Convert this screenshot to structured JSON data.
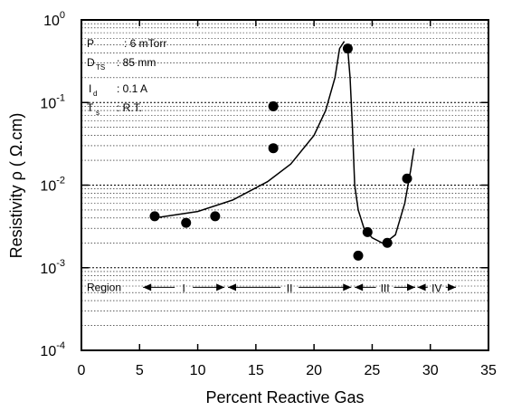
{
  "chart_data": {
    "type": "scatter",
    "xlabel": "Percent Reactive Gas",
    "ylabel": "Resistivity ρ ( Ω.cm)",
    "xlim": [
      0,
      35
    ],
    "ylim": [
      0.0001,
      1
    ],
    "y_scale": "log",
    "grid": "dotted horizontal minor gridlines",
    "x_ticks": [
      "0",
      "5",
      "10",
      "15",
      "20",
      "25",
      "30",
      "35"
    ],
    "y_ticks": [
      {
        "base": "10",
        "exp": "0"
      },
      {
        "base": "10",
        "exp": "-1"
      },
      {
        "base": "10",
        "exp": "-2"
      },
      {
        "base": "10",
        "exp": "-3"
      },
      {
        "base": "10",
        "exp": "-4"
      }
    ],
    "points": [
      {
        "x": 6.3,
        "y": 0.0042
      },
      {
        "x": 9.0,
        "y": 0.0035
      },
      {
        "x": 11.5,
        "y": 0.0042
      },
      {
        "x": 16.5,
        "y": 0.09
      },
      {
        "x": 16.5,
        "y": 0.028
      },
      {
        "x": 22.9,
        "y": 0.45
      },
      {
        "x": 23.8,
        "y": 0.0014
      },
      {
        "x": 24.6,
        "y": 0.0027
      },
      {
        "x": 26.3,
        "y": 0.002
      },
      {
        "x": 28.0,
        "y": 0.012
      }
    ],
    "fit_curve_left": [
      {
        "x": 6.3,
        "y": 0.004
      },
      {
        "x": 10,
        "y": 0.0048
      },
      {
        "x": 13,
        "y": 0.0066
      },
      {
        "x": 16,
        "y": 0.011
      },
      {
        "x": 18,
        "y": 0.018
      },
      {
        "x": 20,
        "y": 0.04
      },
      {
        "x": 21,
        "y": 0.08
      },
      {
        "x": 21.8,
        "y": 0.2
      },
      {
        "x": 22.2,
        "y": 0.45
      },
      {
        "x": 22.6,
        "y": 0.55
      }
    ],
    "fit_curve_right": [
      {
        "x": 22.9,
        "y": 0.45
      },
      {
        "x": 23.1,
        "y": 0.2
      },
      {
        "x": 23.3,
        "y": 0.05
      },
      {
        "x": 23.5,
        "y": 0.01
      },
      {
        "x": 23.8,
        "y": 0.005
      },
      {
        "x": 24.3,
        "y": 0.003
      },
      {
        "x": 25.0,
        "y": 0.0023
      },
      {
        "x": 26.0,
        "y": 0.00195
      },
      {
        "x": 27.0,
        "y": 0.0025
      },
      {
        "x": 27.8,
        "y": 0.006
      },
      {
        "x": 28.3,
        "y": 0.015
      },
      {
        "x": 28.6,
        "y": 0.028
      }
    ],
    "annotations": {
      "pressure": {
        "symbol": "P",
        "sub": "",
        "value": ": 6 mTorr"
      },
      "distance": {
        "symbol": "D",
        "sub": "TS",
        "value": ": 85 mm"
      },
      "current": {
        "symbol": "I",
        "sub": "d",
        "value": ": 0.1 A"
      },
      "temperature": {
        "symbol": "T",
        "sub": "s",
        "value": ": R.T."
      }
    },
    "regions": {
      "label": "Region",
      "y": 0.00058,
      "items": [
        {
          "name": "I",
          "from": 5.3,
          "to": 12.3
        },
        {
          "name": "II",
          "from": 12.6,
          "to": 23.2
        },
        {
          "name": "III",
          "from": 23.5,
          "to": 28.7
        },
        {
          "name": "IV",
          "from": 28.9,
          "to": 32.2
        }
      ]
    }
  }
}
